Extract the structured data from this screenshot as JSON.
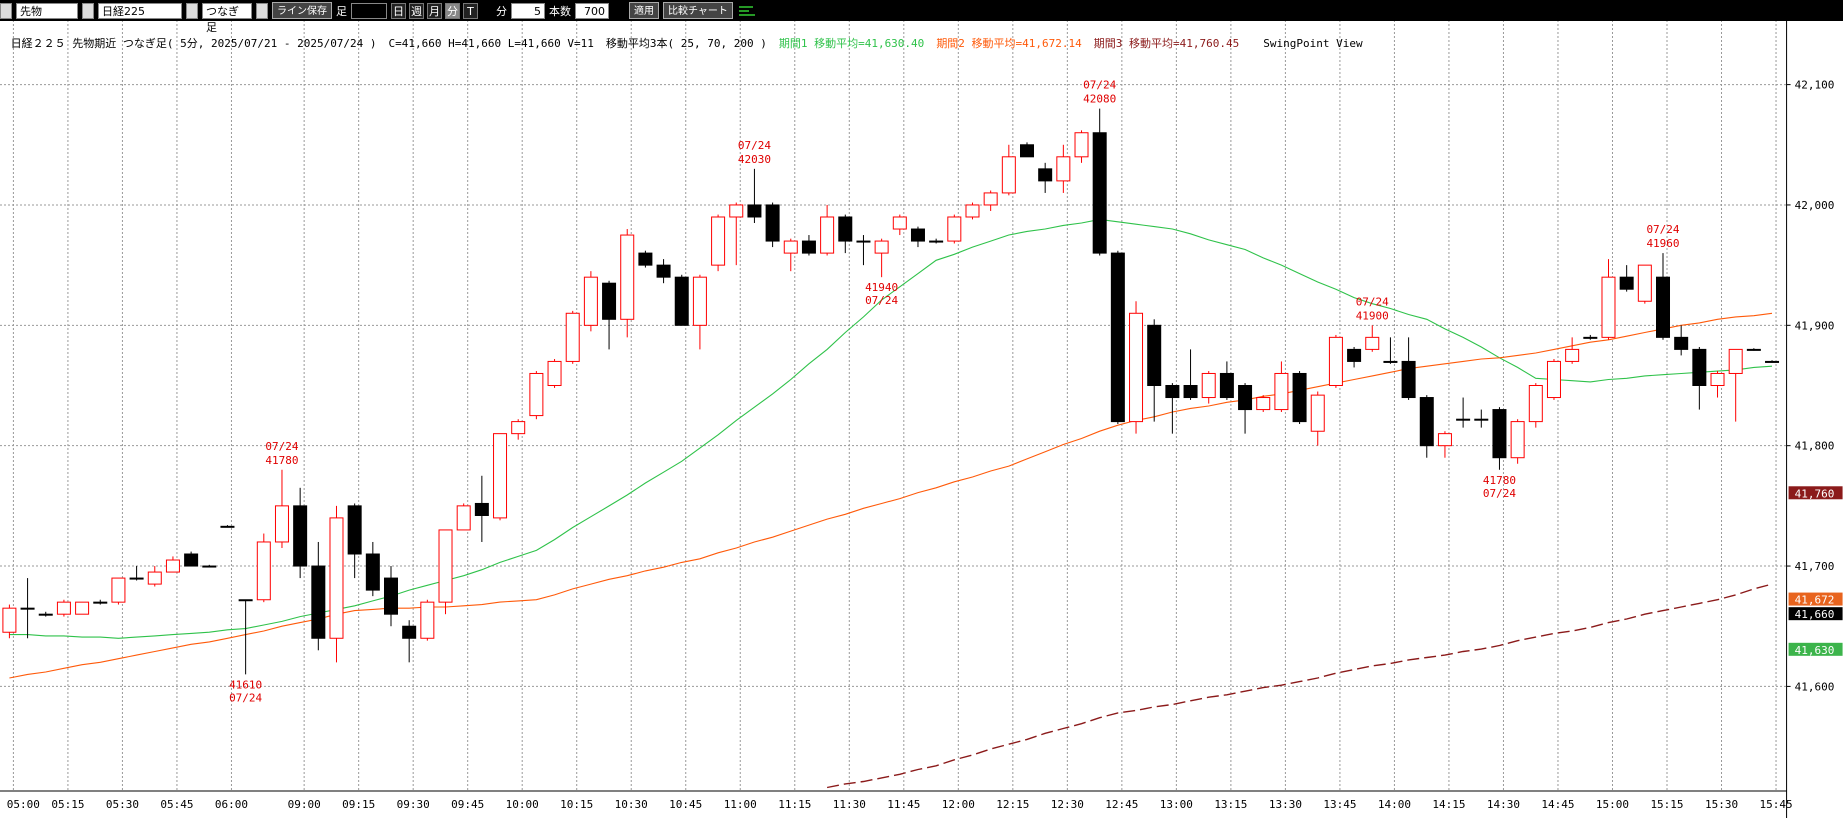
{
  "toolbar": {
    "market": "先物",
    "symbol": "日経225",
    "bar_type": "つなぎ足",
    "save_line": "ライン保存",
    "ashi": "足",
    "periods": [
      "日",
      "週",
      "月",
      "分",
      "T"
    ],
    "unit": "分",
    "interval": 5,
    "count_label": "本数",
    "count": 700,
    "apply": "適用",
    "compare": "比較チャート"
  },
  "chart_data": {
    "type": "candlestick",
    "title": "日経２２５ 先物期近 つなぎ足( 5分, 2025/07/21 - 2025/07/24 )",
    "ohlcv_text": "C=41,660 H=41,660 L=41,660 V=11",
    "ma_text": "移動平均3本( 25, 70, 200 )",
    "view_label": "SwingPoint View",
    "categories": [
      "24 05:00",
      null,
      null,
      "05:15",
      null,
      null,
      "05:30",
      null,
      null,
      "05:45",
      null,
      null,
      "06:00",
      null,
      null,
      null,
      "09:00",
      null,
      null,
      "09:15",
      null,
      null,
      "09:30",
      null,
      null,
      "09:45",
      null,
      null,
      "10:00",
      null,
      null,
      "10:15",
      null,
      null,
      "10:30",
      null,
      null,
      "10:45",
      null,
      null,
      "11:00",
      null,
      null,
      "11:15",
      null,
      null,
      "11:30",
      null,
      null,
      "11:45",
      null,
      null,
      "12:00",
      null,
      null,
      "12:15",
      null,
      null,
      "12:30",
      null,
      null,
      "12:45",
      null,
      null,
      "13:00",
      null,
      null,
      "13:15",
      null,
      null,
      "13:30",
      null,
      null,
      "13:45",
      null,
      null,
      "14:00",
      null,
      null,
      "14:15",
      null,
      null,
      "14:30",
      null,
      null,
      "14:45",
      null,
      null,
      "15:00",
      null,
      null,
      "15:15",
      null,
      null,
      "15:30",
      null,
      null,
      "15:45"
    ],
    "open": [
      41645,
      41665,
      41660,
      41660,
      41660,
      41670,
      41670,
      41690,
      41685,
      41695,
      41710,
      41700,
      41733,
      41672,
      41672,
      41720,
      41750,
      41700,
      41640,
      41750,
      41710,
      41690,
      41650,
      41640,
      41670,
      41730,
      41752,
      41740,
      41810,
      41825,
      41850,
      41870,
      41900,
      41935,
      41905,
      41960,
      41950,
      41940,
      41900,
      41950,
      41990,
      42000,
      42000,
      41960,
      41970,
      41960,
      41990,
      41970,
      41960,
      41980,
      41980,
      41970,
      41970,
      41990,
      42000,
      42010,
      42050,
      42030,
      42020,
      42040,
      42060,
      41960,
      41820,
      41900,
      41850,
      41850,
      41840,
      41860,
      41850,
      41830,
      41830,
      41860,
      41812,
      41850,
      41880,
      41880,
      41870,
      41870,
      41840,
      41800,
      41822,
      41822,
      41830,
      41790,
      41820,
      41840,
      41870,
      41890,
      41890,
      41940,
      41920,
      41940,
      41890,
      41880,
      41850,
      41860,
      41880,
      41870
    ],
    "high": [
      41668,
      41690,
      41662,
      41672,
      41670,
      41672,
      41690,
      41700,
      41700,
      41708,
      41712,
      41701,
      41734,
      41672,
      41727,
      41780,
      41765,
      41720,
      41750,
      41752,
      41720,
      41700,
      41655,
      41672,
      41730,
      41752,
      41775,
      41810,
      41822,
      41862,
      41872,
      41912,
      41945,
      41937,
      41980,
      41962,
      41955,
      41942,
      41942,
      41992,
      42002,
      42030,
      42002,
      41972,
      41975,
      42000,
      41992,
      41975,
      41972,
      41992,
      41982,
      41972,
      41992,
      42002,
      42012,
      42050,
      42052,
      42035,
      42050,
      42062,
      42080,
      41962,
      41920,
      41905,
      41852,
      41880,
      41862,
      41870,
      41852,
      41842,
      41870,
      41862,
      41845,
      41892,
      41882,
      41900,
      41890,
      41890,
      41842,
      41812,
      41840,
      41830,
      41832,
      41822,
      41852,
      41872,
      41890,
      41892,
      41955,
      41950,
      41950,
      41960,
      41900,
      41882,
      41862,
      41880,
      41881,
      41871
    ],
    "low": [
      41640,
      41640,
      41658,
      41658,
      41660,
      41668,
      41668,
      41688,
      41683,
      41695,
      41700,
      41699,
      41732,
      41610,
      41670,
      41715,
      41690,
      41630,
      41620,
      41690,
      41675,
      41650,
      41620,
      41638,
      41660,
      41730,
      41720,
      41738,
      41805,
      41822,
      41848,
      41868,
      41895,
      41880,
      41890,
      41948,
      41935,
      41900,
      41880,
      41945,
      41950,
      41985,
      41965,
      41945,
      41958,
      41958,
      41960,
      41950,
      41940,
      41975,
      41965,
      41968,
      41968,
      41988,
      41995,
      42008,
      42040,
      42010,
      42010,
      42035,
      41958,
      41818,
      41810,
      41820,
      41810,
      41838,
      41835,
      41838,
      41810,
      41828,
      41828,
      41818,
      41800,
      41848,
      41865,
      41878,
      41868,
      41838,
      41790,
      41790,
      41815,
      41815,
      41780,
      41785,
      41815,
      41838,
      41868,
      41888,
      41888,
      41928,
      41918,
      41888,
      41875,
      41830,
      41840,
      41820,
      41879,
      41869
    ],
    "close": [
      41665,
      41665,
      41660,
      41670,
      41670,
      41670,
      41690,
      41690,
      41695,
      41705,
      41700,
      41700,
      41733,
      41672,
      41720,
      41750,
      41700,
      41640,
      41740,
      41710,
      41680,
      41660,
      41640,
      41670,
      41730,
      41750,
      41742,
      41810,
      41820,
      41860,
      41870,
      41910,
      41940,
      41905,
      41975,
      41950,
      41940,
      41900,
      41940,
      41990,
      42000,
      41990,
      41970,
      41970,
      41960,
      41990,
      41970,
      41970,
      41970,
      41990,
      41970,
      41970,
      41990,
      42000,
      42010,
      42040,
      42040,
      42020,
      42040,
      42060,
      41960,
      41820,
      41910,
      41850,
      41840,
      41840,
      41860,
      41840,
      41830,
      41840,
      41860,
      41820,
      41842,
      41890,
      41870,
      41890,
      41870,
      41840,
      41800,
      41810,
      41822,
      41822,
      41790,
      41820,
      41850,
      41870,
      41880,
      41890,
      41940,
      41930,
      41950,
      41890,
      41880,
      41850,
      41860,
      41880,
      41880,
      41870
    ],
    "up_color": "#ff0000",
    "down_color": "#000000",
    "series": [
      {
        "name": "期間1 移動平均=41,630.40",
        "color": "#2fc24a",
        "style": "solid",
        "values": [
          41643,
          41643,
          41642,
          41642,
          41641,
          41641,
          41640,
          41641,
          41642,
          41643,
          41644,
          41645,
          41647,
          41648,
          41651,
          41654,
          41658,
          41661,
          41664,
          41667,
          41671,
          41675,
          41680,
          41684,
          41688,
          41692,
          41697,
          41703,
          41708,
          41713,
          41722,
          41732,
          41741,
          41750,
          41759,
          41769,
          41778,
          41787,
          41798,
          41809,
          41821,
          41832,
          41843,
          41855,
          41868,
          41880,
          41894,
          41907,
          41921,
          41932,
          41943,
          41954,
          41959,
          41965,
          41970,
          41975,
          41978,
          41980,
          41983,
          41985,
          41988,
          41986,
          41984,
          41982,
          41980,
          41976,
          41971,
          41967,
          41963,
          41956,
          41950,
          41943,
          41936,
          41930,
          41923,
          41918,
          41914,
          41909,
          41905,
          41897,
          41890,
          41882,
          41873,
          41865,
          41856,
          41855,
          41854,
          41853,
          41855,
          41856,
          41858,
          41859,
          41860,
          41861,
          41862,
          41863,
          41865,
          41866
        ]
      },
      {
        "name": "期間2 移動平均=41,672.14",
        "color": "#ff5a0a",
        "style": "solid",
        "values": [
          41607,
          41610,
          41612,
          41615,
          41618,
          41620,
          41623,
          41626,
          41629,
          41632,
          41635,
          41637,
          41640,
          41643,
          41646,
          41650,
          41653,
          41656,
          41660,
          41663,
          41664,
          41665,
          41665,
          41666,
          41666,
          41667,
          41668,
          41670,
          41671,
          41672,
          41676,
          41681,
          41685,
          41689,
          41692,
          41696,
          41699,
          41703,
          41706,
          41711,
          41715,
          41720,
          41724,
          41729,
          41734,
          41739,
          41743,
          41748,
          41752,
          41756,
          41761,
          41765,
          41770,
          41774,
          41779,
          41783,
          41789,
          41795,
          41801,
          41806,
          41812,
          41817,
          41821,
          41824,
          41828,
          41831,
          41833,
          41836,
          41838,
          41841,
          41843,
          41846,
          41849,
          41852,
          41855,
          41858,
          41861,
          41864,
          41866,
          41868,
          41870,
          41872,
          41873,
          41875,
          41877,
          41880,
          41883,
          41886,
          41888,
          41891,
          41894,
          41897,
          41900,
          41902,
          41905,
          41907,
          41908,
          41910
        ]
      },
      {
        "name": "期間3 移動平均=41,760.45",
        "color": "#8b1a1a",
        "style": "dashed",
        "values": [
          null,
          null,
          null,
          null,
          null,
          null,
          null,
          null,
          null,
          null,
          null,
          null,
          null,
          null,
          null,
          null,
          null,
          null,
          null,
          null,
          null,
          null,
          null,
          null,
          null,
          null,
          null,
          null,
          null,
          null,
          null,
          null,
          null,
          null,
          null,
          null,
          null,
          null,
          null,
          null,
          null,
          null,
          null,
          null,
          null,
          41516,
          41519,
          41521,
          41524,
          41527,
          41531,
          41534,
          41539,
          41543,
          41548,
          41552,
          41556,
          41561,
          41565,
          41569,
          41574,
          41578,
          41580,
          41583,
          41585,
          41588,
          41591,
          41593,
          41596,
          41599,
          41601,
          41604,
          41607,
          41611,
          41614,
          41617,
          41619,
          41622,
          41624,
          41626,
          41629,
          41631,
          41634,
          41638,
          41641,
          41644,
          41646,
          41649,
          41653,
          41656,
          41660,
          41663,
          41666,
          41669,
          41672,
          41676,
          41681,
          41685
        ]
      }
    ],
    "ylim": [
      41516,
      42153
    ],
    "yticks": [
      {
        "value": 41600,
        "label": "41,600"
      },
      {
        "value": 41700,
        "label": "41,700"
      },
      {
        "value": 41800,
        "label": "41,800"
      },
      {
        "value": 41900,
        "label": "41,900"
      },
      {
        "value": 42000,
        "label": "42,000"
      },
      {
        "value": 42100,
        "label": "42,100"
      }
    ],
    "grid": true,
    "annotations": [
      {
        "date": "07/24",
        "price": 41610,
        "position": "below"
      },
      {
        "date": "07/24",
        "price": 41780,
        "position": "above"
      },
      {
        "date": "07/24",
        "price": 42030,
        "position": "above"
      },
      {
        "date": "07/24",
        "price": 41940,
        "position": "below"
      },
      {
        "date": "07/24",
        "price": 42080,
        "position": "above"
      },
      {
        "date": "07/24",
        "price": 41900,
        "position": "above"
      },
      {
        "date": "07/24",
        "price": 41780,
        "position": "below"
      },
      {
        "date": "07/24",
        "price": 41960,
        "position": "above"
      }
    ],
    "price_tags": [
      {
        "value": 41760.45,
        "label": "41,760",
        "color": "#8b1a1a"
      },
      {
        "value": 41672.14,
        "label": "41,672",
        "color": "#e8641e"
      },
      {
        "value": 41660,
        "label": "41,660",
        "color": "#000000"
      },
      {
        "value": 41630.4,
        "label": "41,630",
        "color": "#3cb44b"
      }
    ]
  }
}
